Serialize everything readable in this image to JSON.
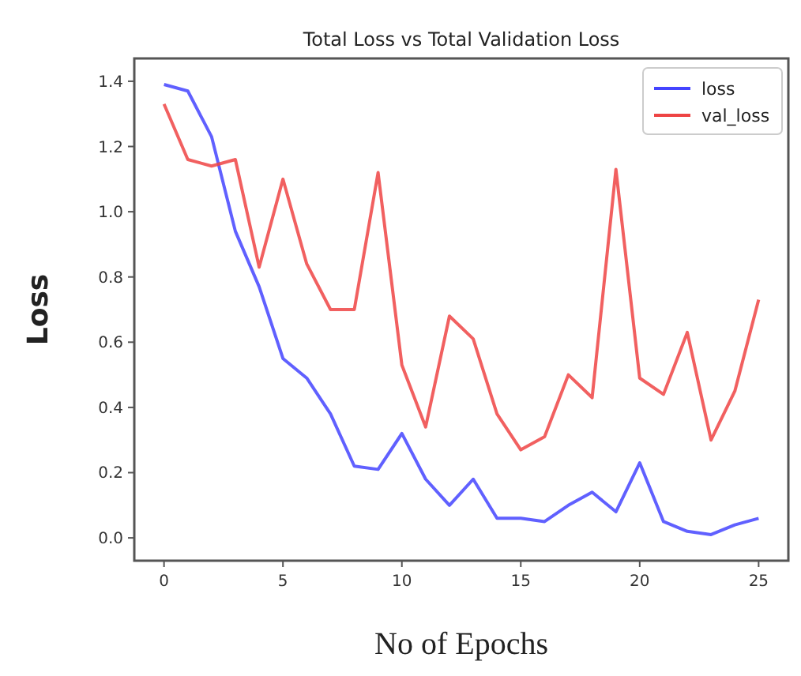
{
  "chart_data": {
    "type": "line",
    "title": "Total Loss vs Total Validation Loss",
    "xlabel": "No of Epochs",
    "ylabel": "Loss",
    "x": [
      0,
      1,
      2,
      3,
      4,
      5,
      6,
      7,
      8,
      9,
      10,
      11,
      12,
      13,
      14,
      15,
      16,
      17,
      18,
      19,
      20,
      21,
      22,
      23,
      24,
      25
    ],
    "series": [
      {
        "name": "loss",
        "color": "#4444ff",
        "values": [
          1.39,
          1.37,
          1.23,
          0.94,
          0.77,
          0.55,
          0.49,
          0.38,
          0.22,
          0.21,
          0.32,
          0.18,
          0.1,
          0.18,
          0.06,
          0.06,
          0.05,
          0.1,
          0.14,
          0.08,
          0.23,
          0.05,
          0.02,
          0.01,
          0.04,
          0.06
        ]
      },
      {
        "name": "val_loss",
        "color": "#ee4444",
        "values": [
          1.33,
          1.16,
          1.14,
          1.16,
          0.83,
          1.1,
          0.84,
          0.7,
          0.7,
          1.12,
          0.53,
          0.34,
          0.68,
          0.61,
          0.38,
          0.27,
          0.31,
          0.5,
          0.43,
          1.13,
          0.49,
          0.44,
          0.63,
          0.3,
          0.45,
          0.73
        ]
      }
    ],
    "xlim": [
      -1.25,
      26.25
    ],
    "xticks": [
      0,
      5,
      10,
      15,
      20,
      25
    ],
    "ylim": [
      -0.07,
      1.47
    ],
    "yticks": [
      {
        "value": 0,
        "label": "0.0"
      },
      {
        "value": 0.2,
        "label": "0.2"
      },
      {
        "value": 0.4,
        "label": "0.4"
      },
      {
        "value": 0.6,
        "label": "0.6"
      },
      {
        "value": 0.8,
        "label": "0.8"
      },
      {
        "value": 1,
        "label": "1.0"
      },
      {
        "value": 1.2,
        "label": "1.2"
      },
      {
        "value": 1.4,
        "label": "1.4"
      }
    ],
    "legend": "top right",
    "grid": false,
    "marker": "none",
    "line_style": "solid"
  }
}
